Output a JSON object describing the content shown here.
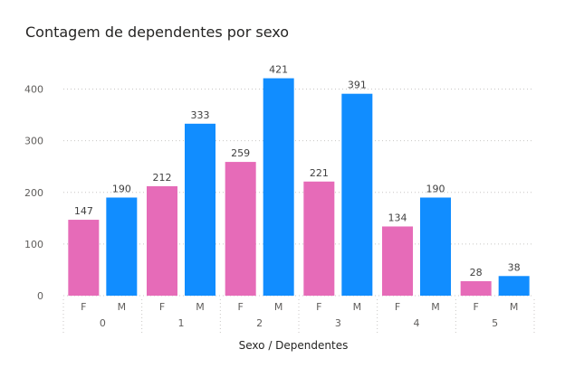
{
  "chart_data": {
    "type": "bar",
    "title": "Contagem de dependentes por sexo",
    "xlabel": "Sexo / Dependentes",
    "ylabel": "",
    "ylim": [
      0,
      450
    ],
    "yticks": [
      0,
      100,
      200,
      300,
      400
    ],
    "grid": true,
    "groups": [
      "0",
      "1",
      "2",
      "3",
      "4",
      "5"
    ],
    "subcategories": [
      "F",
      "M"
    ],
    "colors": {
      "F": "#E66BB8",
      "M": "#118DFF"
    },
    "series": [
      {
        "category": "F",
        "values": [
          147,
          212,
          259,
          221,
          134,
          28
        ]
      },
      {
        "category": "M",
        "values": [
          190,
          333,
          421,
          391,
          190,
          38
        ]
      }
    ]
  }
}
